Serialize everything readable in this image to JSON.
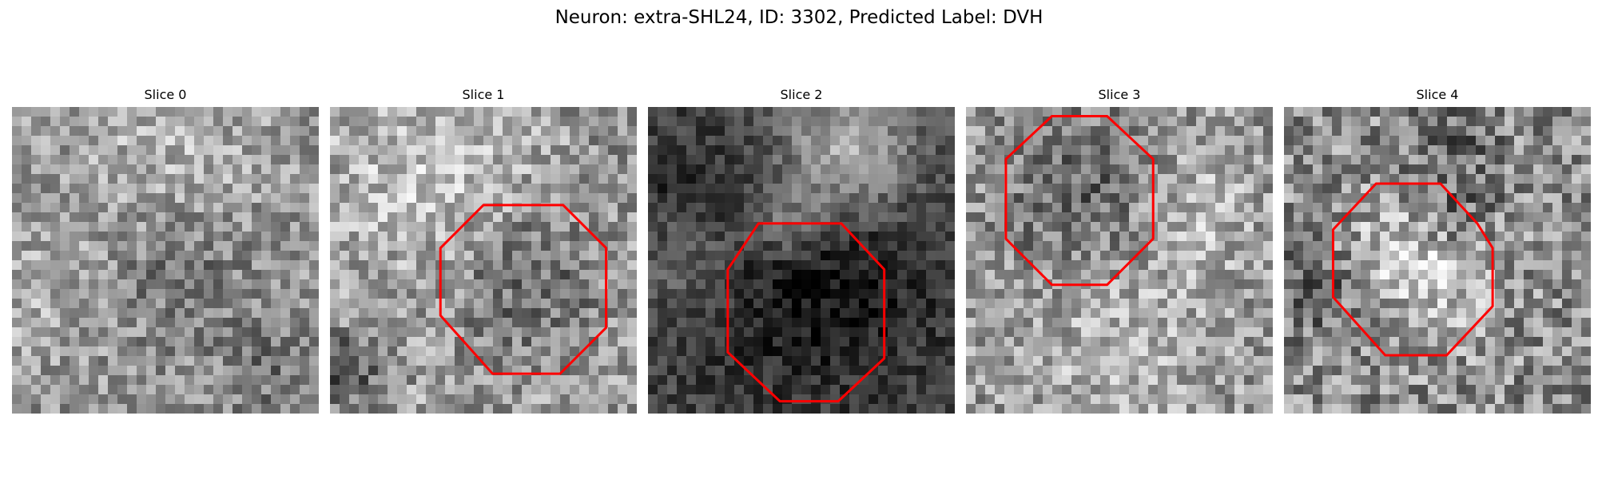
{
  "title": "Neuron: extra-SHL24, ID: 3302, Predicted Label: DVH",
  "outline_color": "#ff0000",
  "colormap": "gray",
  "slices": [
    {
      "label": "Slice 0",
      "outline": false
    },
    {
      "label": "Slice 1",
      "outline": true
    },
    {
      "label": "Slice 2",
      "outline": true
    },
    {
      "label": "Slice 3",
      "outline": true
    },
    {
      "label": "Slice 4",
      "outline": true
    }
  ]
}
